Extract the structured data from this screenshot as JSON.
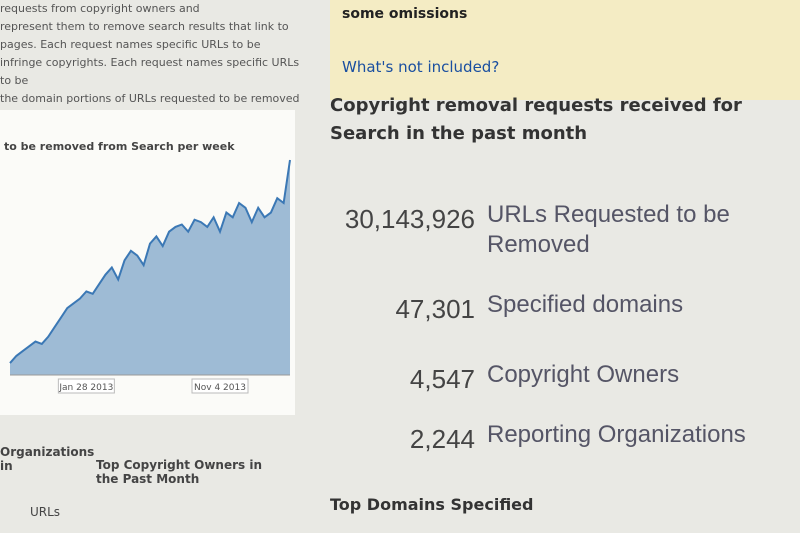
{
  "intro": {
    "lines": [
      "requests from copyright owners and",
      "represent them to remove search results that link to",
      "pages. Each request names specific URLs to be",
      "infringe copyrights. Each request names specific URLs to be",
      "the domain portions of URLs requested to be removed under"
    ]
  },
  "notice": {
    "text": "some omissions",
    "link": "What's not included?"
  },
  "heading": "Copyright removal requests received for Search in the past month",
  "stats": [
    {
      "value": "30,143,926",
      "label": "URLs Requested to be Removed"
    },
    {
      "value": "47,301",
      "label": "Specified domains"
    },
    {
      "value": "4,547",
      "label": "Copyright Owners"
    },
    {
      "value": "2,244",
      "label": "Reporting Organizations"
    }
  ],
  "sections": {
    "organizations": "Organizations in",
    "owners": "Top Copyright Owners in the Past Month",
    "urls": "URLs",
    "domains": "Top Domains Specified"
  },
  "chart_data": {
    "type": "area",
    "title": "to be removed from Search per week",
    "color": "#7fa6c9",
    "categories": [
      null,
      null,
      null,
      null,
      null,
      null,
      null,
      null,
      null,
      null,
      null,
      null,
      "Jan 28 2013",
      null,
      null,
      null,
      null,
      null,
      null,
      null,
      null,
      null,
      null,
      null,
      null,
      null,
      null,
      null,
      null,
      null,
      null,
      null,
      null,
      "Nov 4 2013",
      null,
      null,
      null,
      null,
      null,
      null,
      null,
      null,
      null,
      null,
      null
    ],
    "values": [
      5,
      8,
      10,
      12,
      14,
      13,
      16,
      20,
      24,
      28,
      30,
      32,
      35,
      34,
      38,
      42,
      45,
      40,
      48,
      52,
      50,
      46,
      55,
      58,
      54,
      60,
      62,
      63,
      60,
      65,
      64,
      62,
      66,
      60,
      68,
      66,
      72,
      70,
      64,
      70,
      66,
      68,
      74,
      72,
      90
    ]
  }
}
